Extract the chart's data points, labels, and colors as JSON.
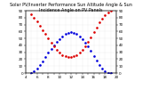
{
  "title": "Solar PV/Inverter Performance Sun Altitude Angle & Sun Incidence Angle on PV Panels",
  "ylim": [
    0,
    90
  ],
  "xlim": [
    4,
    20
  ],
  "xticks": [
    4,
    5,
    6,
    7,
    8,
    9,
    10,
    11,
    12,
    13,
    14,
    15,
    16,
    17,
    18,
    19,
    20
  ],
  "yticks_left": [
    0,
    10,
    20,
    30,
    40,
    50,
    60,
    70,
    80,
    90
  ],
  "yticks_right": [
    0,
    10,
    20,
    30,
    40,
    50,
    60,
    70,
    80,
    90
  ],
  "altitude_color": "#0000dd",
  "incidence_color": "#dd0000",
  "background": "#ffffff",
  "altitude_x": [
    5.0,
    5.5,
    6.0,
    6.5,
    7.0,
    7.5,
    8.0,
    8.5,
    9.0,
    9.5,
    10.0,
    10.5,
    11.0,
    11.5,
    12.0,
    12.5,
    13.0,
    13.5,
    14.0,
    14.5,
    15.0,
    15.5,
    16.0,
    16.5,
    17.0,
    17.5,
    18.0,
    18.5,
    19.0
  ],
  "altitude_y": [
    0,
    3,
    7,
    12,
    17,
    23,
    29,
    35,
    40,
    45,
    49,
    53,
    56,
    58,
    59,
    58,
    56,
    53,
    49,
    44,
    38,
    32,
    25,
    18,
    12,
    6,
    2,
    0,
    0
  ],
  "incidence_x": [
    5.0,
    5.5,
    6.0,
    6.5,
    7.0,
    7.5,
    8.0,
    8.5,
    9.0,
    9.5,
    10.0,
    10.5,
    11.0,
    11.5,
    12.0,
    12.5,
    13.0,
    13.5,
    14.0,
    14.5,
    15.0,
    15.5,
    16.0,
    16.5,
    17.0,
    17.5,
    18.0,
    18.5,
    19.0
  ],
  "incidence_y": [
    85,
    80,
    74,
    68,
    62,
    56,
    50,
    44,
    38,
    33,
    29,
    26,
    24,
    23,
    23,
    24,
    26,
    30,
    34,
    39,
    45,
    52,
    59,
    66,
    73,
    79,
    84,
    88,
    90
  ],
  "grid_color": "#bbbbbb",
  "title_fontsize": 3.5,
  "tick_fontsize": 3.0,
  "marker": ".",
  "markersize": 1.8,
  "linewidth": 0
}
